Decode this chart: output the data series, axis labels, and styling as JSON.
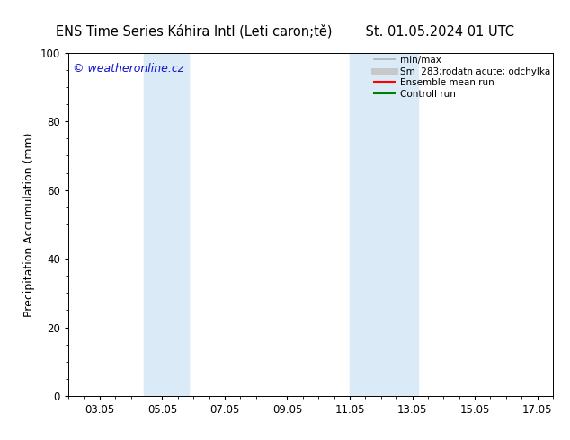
{
  "title_left": "ENS Time Series Káhira Intl (Leti caron;tě)",
  "title_right": "St. 01.05.2024 01 UTC",
  "ylabel": "Precipitation Accumulation (mm)",
  "ylim": [
    0,
    100
  ],
  "yticks": [
    0,
    20,
    40,
    60,
    80,
    100
  ],
  "xtick_labels": [
    "03.05",
    "05.05",
    "07.05",
    "09.05",
    "11.05",
    "13.05",
    "15.05",
    "17.05"
  ],
  "xtick_positions": [
    3,
    5,
    7,
    9,
    11,
    13,
    15,
    17
  ],
  "xlim": [
    2.0,
    17.5
  ],
  "shaded_regions": [
    {
      "x_start": 4.42,
      "x_end": 5.85,
      "color": "#daeaf7"
    },
    {
      "x_start": 11.0,
      "x_end": 13.2,
      "color": "#daeaf7"
    }
  ],
  "watermark_text": "© weatheronline.cz",
  "watermark_color": "#1515cc",
  "legend_entries": [
    {
      "label": "min/max",
      "color": "#b0b0b0",
      "lw": 1.2
    },
    {
      "label": "Sm  283;rodatn acute; odchylka",
      "color": "#c8c8c8",
      "lw": 5
    },
    {
      "label": "Ensemble mean run",
      "color": "#ff0000",
      "lw": 1.5
    },
    {
      "label": "Controll run",
      "color": "#008000",
      "lw": 1.5
    }
  ],
  "bg_color": "#ffffff",
  "plot_bg_color": "#ffffff",
  "title_fontsize": 10.5,
  "tick_fontsize": 8.5,
  "ylabel_fontsize": 9,
  "legend_fontsize": 7.5,
  "watermark_fontsize": 9
}
